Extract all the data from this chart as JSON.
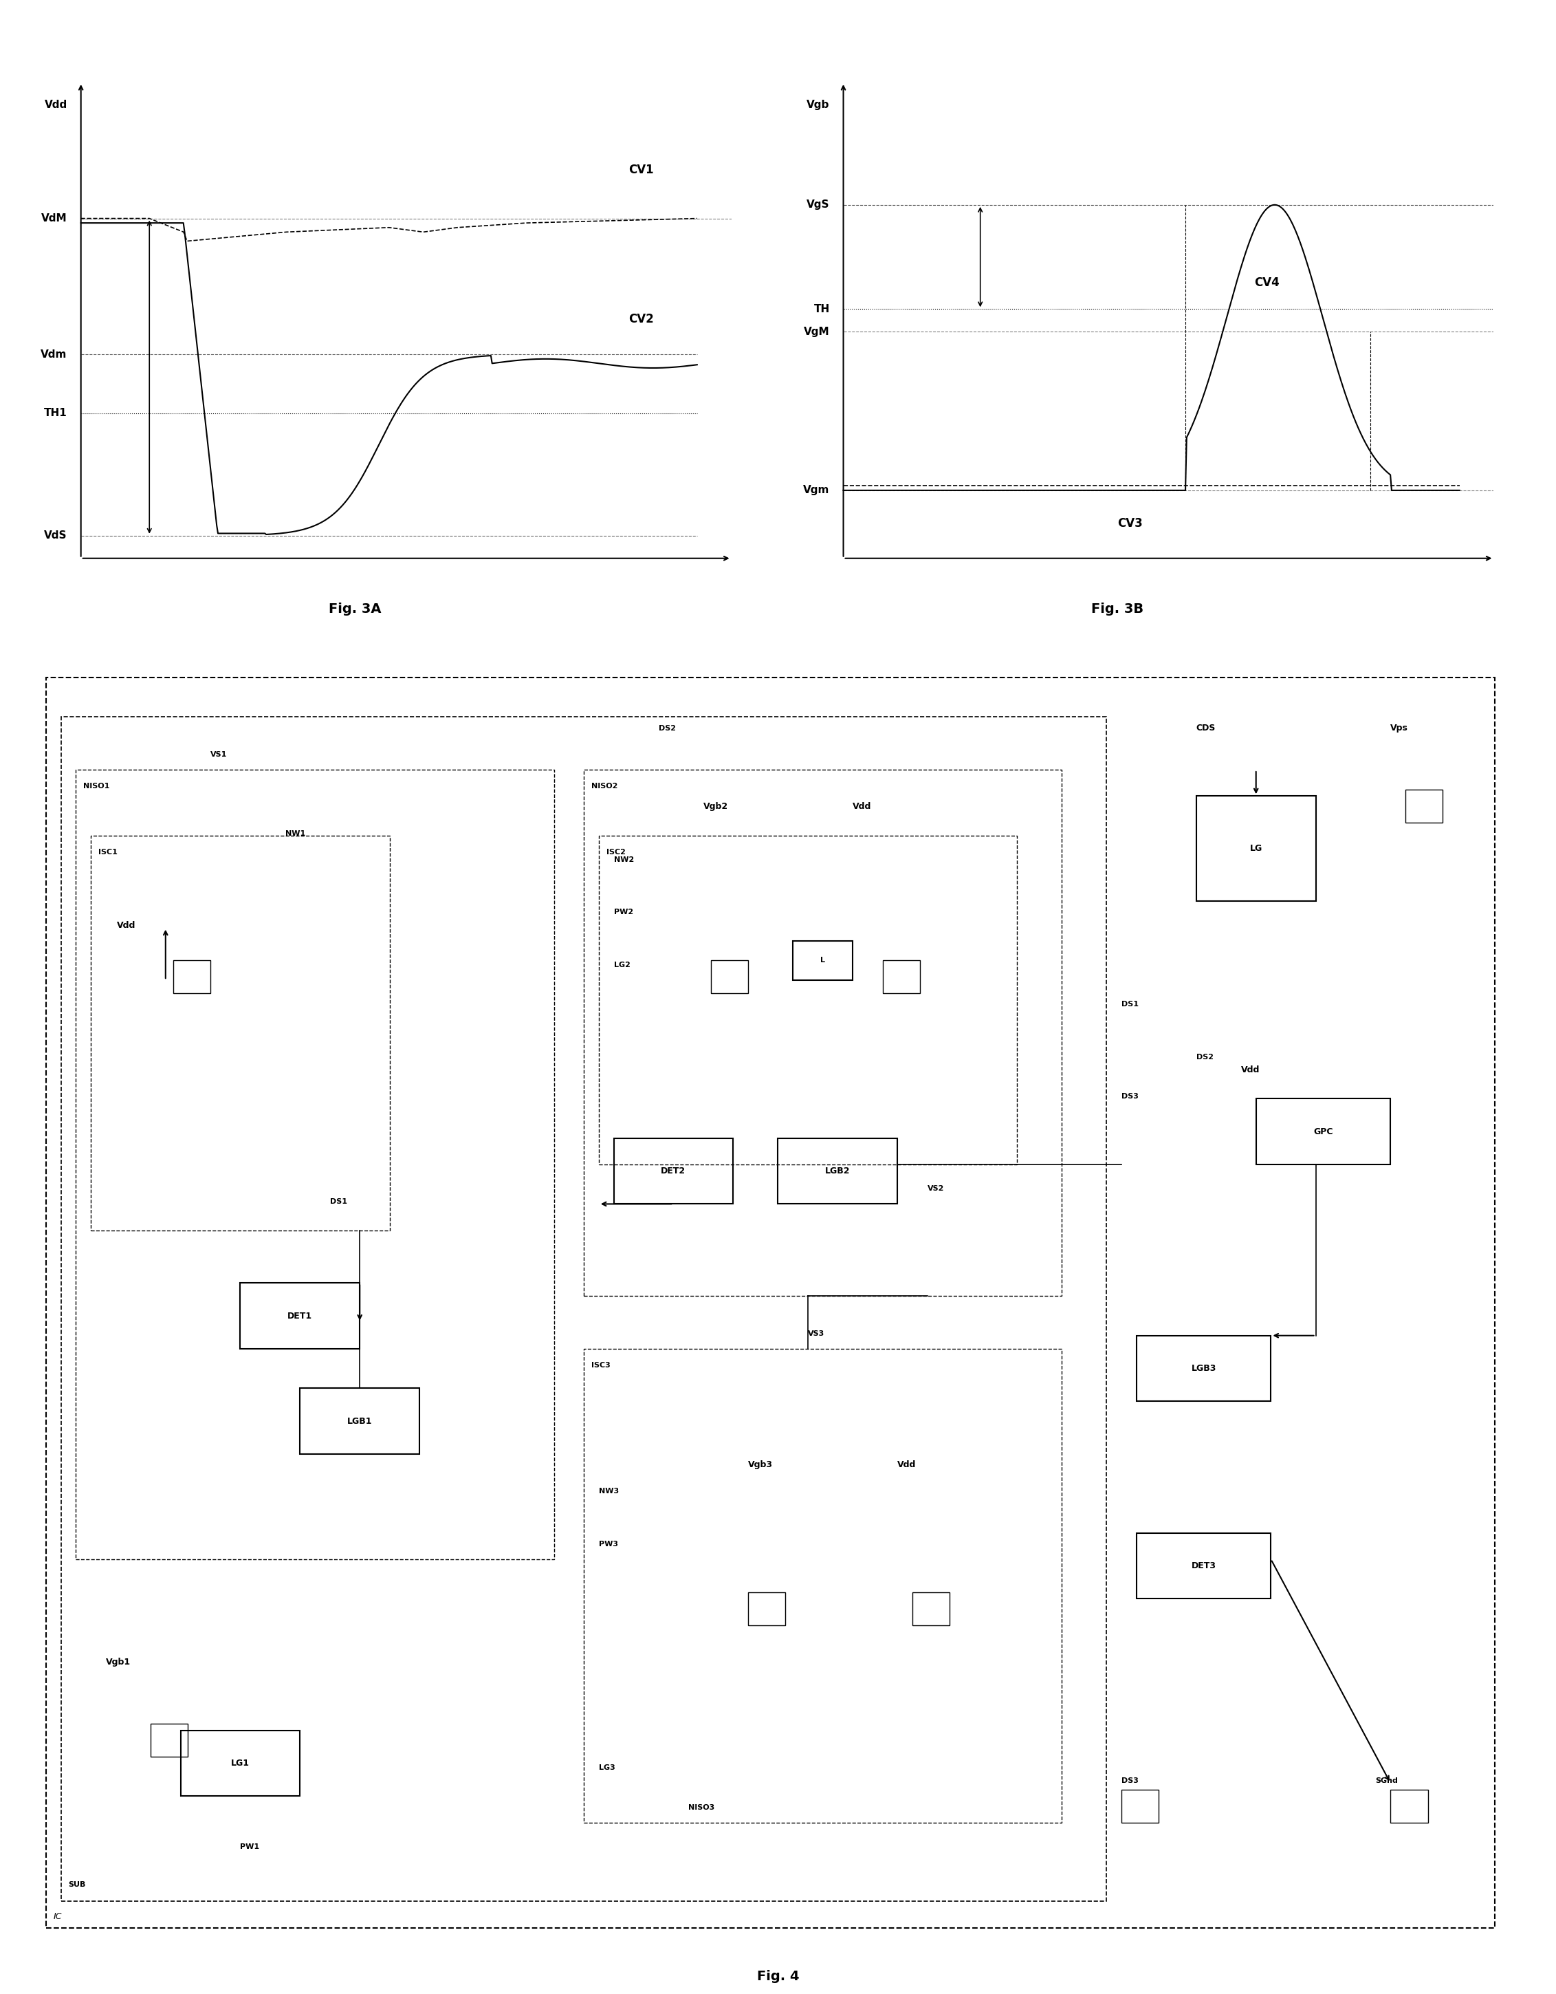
{
  "fig3a": {
    "title": "Fig. 3A",
    "ylabel": "Vdd",
    "levels": {
      "Vdd": 0.95,
      "VdM": 0.75,
      "Vdm": 0.45,
      "TH1": 0.32,
      "VdS": 0.05
    },
    "cv1_label": "CV1",
    "cv2_label": "CV2"
  },
  "fig3b": {
    "title": "Fig. 3B",
    "ylabel": "Vgb",
    "levels": {
      "Vgb": 0.95,
      "VgS": 0.78,
      "TH": 0.55,
      "VgM": 0.5,
      "Vgm": 0.15
    },
    "cv3_label": "CV3",
    "cv4_label": "CV4"
  },
  "fig4": {
    "title": "Fig. 4",
    "ic_label": "IC"
  }
}
